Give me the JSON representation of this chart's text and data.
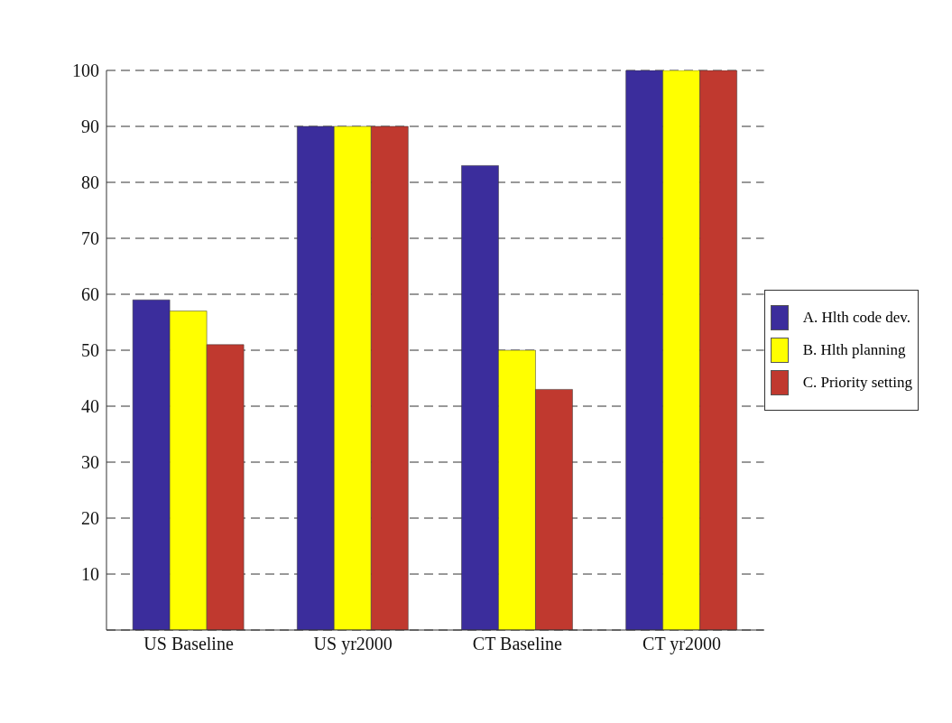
{
  "chart_data": {
    "type": "bar",
    "categories": [
      "US Baseline",
      "US yr2000",
      "CT Baseline",
      "CT yr2000"
    ],
    "series": [
      {
        "name": "A. Hlth code dev.",
        "color": "#3b2d9c",
        "values": [
          59,
          90,
          83,
          100
        ]
      },
      {
        "name": "B. Hlth planning",
        "color": "#ffff00",
        "values": [
          57,
          90,
          50,
          100
        ]
      },
      {
        "name": "C. Priority setting",
        "color": "#c0392f",
        "values": [
          51,
          90,
          43,
          100
        ]
      }
    ],
    "ylim": [
      0,
      100
    ],
    "yticks": [
      10,
      20,
      30,
      40,
      50,
      60,
      70,
      80,
      90,
      100
    ],
    "grid": "y",
    "legend": "right"
  }
}
